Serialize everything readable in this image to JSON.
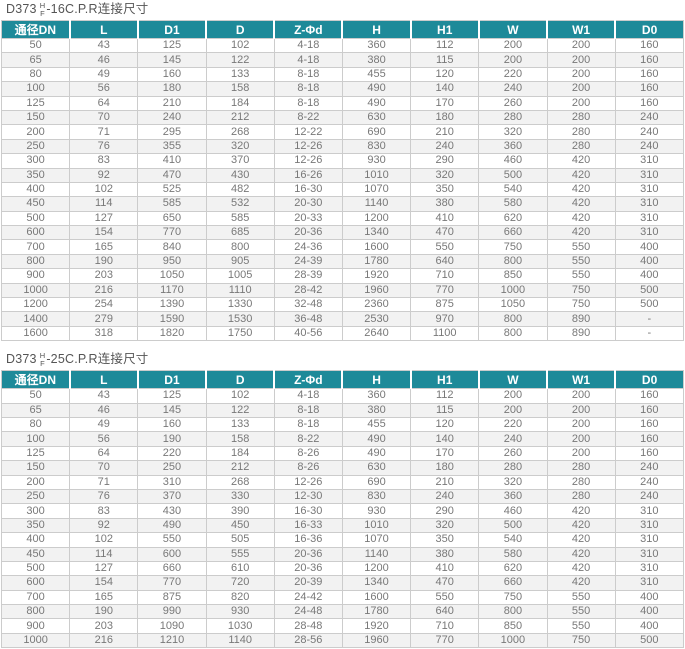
{
  "colors": {
    "header_bg": "#1e8a99",
    "header_text": "#ffffff",
    "row_alt_bg": "#f2f2f2",
    "border": "#cccccc",
    "cell_text": "#787878",
    "title_text": "#555555"
  },
  "tables": [
    {
      "title": {
        "prefix": "D373",
        "stack_top": "H",
        "stack_bottom": "F",
        "suffix": "-16C.P.R连接尺寸"
      },
      "headers": [
        "通径DN",
        "L",
        "D1",
        "D",
        "Z-Φd",
        "H",
        "H1",
        "W",
        "W1",
        "D0"
      ],
      "rows": [
        [
          "50",
          "43",
          "125",
          "102",
          "4-18",
          "360",
          "112",
          "200",
          "200",
          "160"
        ],
        [
          "65",
          "46",
          "145",
          "122",
          "4-18",
          "380",
          "115",
          "200",
          "200",
          "160"
        ],
        [
          "80",
          "49",
          "160",
          "133",
          "8-18",
          "455",
          "120",
          "220",
          "200",
          "160"
        ],
        [
          "100",
          "56",
          "180",
          "158",
          "8-18",
          "490",
          "140",
          "240",
          "200",
          "160"
        ],
        [
          "125",
          "64",
          "210",
          "184",
          "8-18",
          "490",
          "170",
          "260",
          "200",
          "160"
        ],
        [
          "150",
          "70",
          "240",
          "212",
          "8-22",
          "630",
          "180",
          "280",
          "280",
          "240"
        ],
        [
          "200",
          "71",
          "295",
          "268",
          "12-22",
          "690",
          "210",
          "320",
          "280",
          "240"
        ],
        [
          "250",
          "76",
          "355",
          "320",
          "12-26",
          "830",
          "240",
          "360",
          "280",
          "240"
        ],
        [
          "300",
          "83",
          "410",
          "370",
          "12-26",
          "930",
          "290",
          "460",
          "420",
          "310"
        ],
        [
          "350",
          "92",
          "470",
          "430",
          "16-26",
          "1010",
          "320",
          "500",
          "420",
          "310"
        ],
        [
          "400",
          "102",
          "525",
          "482",
          "16-30",
          "1070",
          "350",
          "540",
          "420",
          "310"
        ],
        [
          "450",
          "114",
          "585",
          "532",
          "20-30",
          "1140",
          "380",
          "580",
          "420",
          "310"
        ],
        [
          "500",
          "127",
          "650",
          "585",
          "20-33",
          "1200",
          "410",
          "620",
          "420",
          "310"
        ],
        [
          "600",
          "154",
          "770",
          "685",
          "20-36",
          "1340",
          "470",
          "660",
          "420",
          "310"
        ],
        [
          "700",
          "165",
          "840",
          "800",
          "24-36",
          "1600",
          "550",
          "750",
          "550",
          "400"
        ],
        [
          "800",
          "190",
          "950",
          "905",
          "24-39",
          "1780",
          "640",
          "800",
          "550",
          "400"
        ],
        [
          "900",
          "203",
          "1050",
          "1005",
          "28-39",
          "1920",
          "710",
          "850",
          "550",
          "400"
        ],
        [
          "1000",
          "216",
          "1170",
          "1110",
          "28-42",
          "1960",
          "770",
          "1000",
          "750",
          "500"
        ],
        [
          "1200",
          "254",
          "1390",
          "1330",
          "32-48",
          "2360",
          "875",
          "1050",
          "750",
          "500"
        ],
        [
          "1400",
          "279",
          "1590",
          "1530",
          "36-48",
          "2530",
          "970",
          "800",
          "890",
          "-"
        ],
        [
          "1600",
          "318",
          "1820",
          "1750",
          "40-56",
          "2640",
          "1100",
          "800",
          "890",
          "-"
        ]
      ]
    },
    {
      "title": {
        "prefix": "D373",
        "stack_top": "H",
        "stack_bottom": "F",
        "suffix": "-25C.P.R连接尺寸"
      },
      "headers": [
        "通径DN",
        "L",
        "D1",
        "D",
        "Z-Φd",
        "H",
        "H1",
        "W",
        "W1",
        "D0"
      ],
      "rows": [
        [
          "50",
          "43",
          "125",
          "102",
          "4-18",
          "360",
          "112",
          "200",
          "200",
          "160"
        ],
        [
          "65",
          "46",
          "145",
          "122",
          "8-18",
          "380",
          "115",
          "200",
          "200",
          "160"
        ],
        [
          "80",
          "49",
          "160",
          "133",
          "8-18",
          "455",
          "120",
          "220",
          "200",
          "160"
        ],
        [
          "100",
          "56",
          "190",
          "158",
          "8-22",
          "490",
          "140",
          "240",
          "200",
          "160"
        ],
        [
          "125",
          "64",
          "220",
          "184",
          "8-26",
          "490",
          "170",
          "260",
          "200",
          "160"
        ],
        [
          "150",
          "70",
          "250",
          "212",
          "8-26",
          "630",
          "180",
          "280",
          "280",
          "240"
        ],
        [
          "200",
          "71",
          "310",
          "268",
          "12-26",
          "690",
          "210",
          "320",
          "280",
          "240"
        ],
        [
          "250",
          "76",
          "370",
          "330",
          "12-30",
          "830",
          "240",
          "360",
          "280",
          "240"
        ],
        [
          "300",
          "83",
          "430",
          "390",
          "16-30",
          "930",
          "290",
          "460",
          "420",
          "310"
        ],
        [
          "350",
          "92",
          "490",
          "450",
          "16-33",
          "1010",
          "320",
          "500",
          "420",
          "310"
        ],
        [
          "400",
          "102",
          "550",
          "505",
          "16-36",
          "1070",
          "350",
          "540",
          "420",
          "310"
        ],
        [
          "450",
          "114",
          "600",
          "555",
          "20-36",
          "1140",
          "380",
          "580",
          "420",
          "310"
        ],
        [
          "500",
          "127",
          "660",
          "610",
          "20-36",
          "1200",
          "410",
          "620",
          "420",
          "310"
        ],
        [
          "600",
          "154",
          "770",
          "720",
          "20-39",
          "1340",
          "470",
          "660",
          "420",
          "310"
        ],
        [
          "700",
          "165",
          "875",
          "820",
          "24-42",
          "1600",
          "550",
          "750",
          "550",
          "400"
        ],
        [
          "800",
          "190",
          "990",
          "930",
          "24-48",
          "1780",
          "640",
          "800",
          "550",
          "400"
        ],
        [
          "900",
          "203",
          "1090",
          "1030",
          "28-48",
          "1920",
          "710",
          "850",
          "550",
          "400"
        ],
        [
          "1000",
          "216",
          "1210",
          "1140",
          "28-56",
          "1960",
          "770",
          "1000",
          "750",
          "500"
        ]
      ]
    }
  ]
}
